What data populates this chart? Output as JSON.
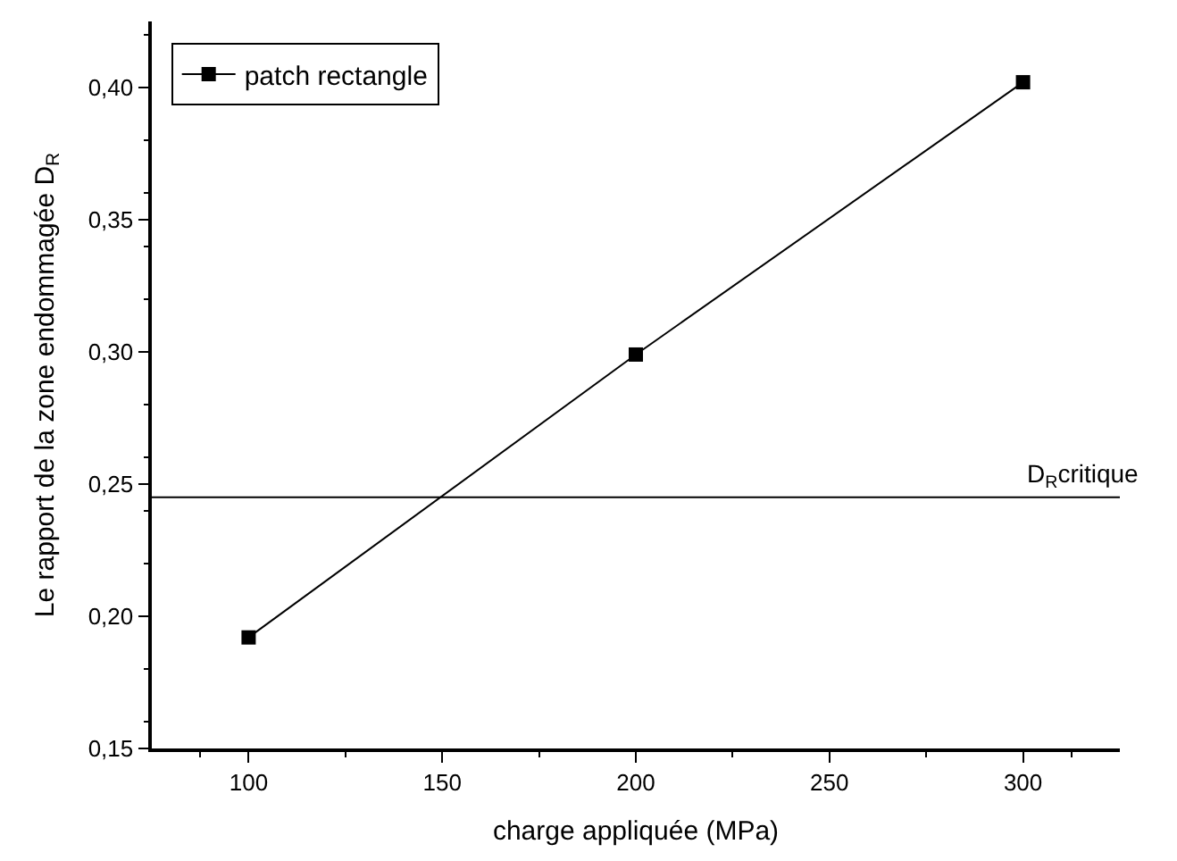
{
  "chart_data": {
    "type": "line",
    "xlabel": "charge appliquée (MPa)",
    "ylabel": "Le rapport de la zone endommagée D$_{R}$",
    "x": [
      100,
      200,
      300
    ],
    "series": [
      {
        "name": "patch rectangle",
        "color": "#000000",
        "values": [
          0.192,
          0.299,
          0.402
        ]
      }
    ],
    "xlim": [
      75,
      325
    ],
    "xticks": [
      100,
      150,
      200,
      250,
      300
    ],
    "ylim": [
      0.15,
      0.425
    ],
    "yticks": [
      {
        "value": 0.15,
        "label": "0,15"
      },
      {
        "value": 0.2,
        "label": "0,20"
      },
      {
        "value": 0.25,
        "label": "0,25"
      },
      {
        "value": 0.3,
        "label": "0,30"
      },
      {
        "value": 0.35,
        "label": "0,35"
      },
      {
        "value": 0.4,
        "label": "0,40"
      }
    ],
    "ref_lines": [
      {
        "axis": "y",
        "value": 0.245,
        "label": "D$_{R}$critique",
        "color": "#000000"
      }
    ],
    "marker": "square",
    "line_style": "solid",
    "legend": "top left"
  }
}
